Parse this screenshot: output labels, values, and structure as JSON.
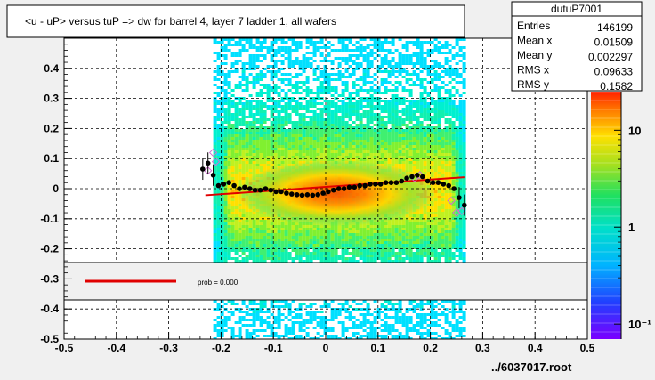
{
  "title": "<u - uP>       versus  tuP =>  dw for barrel 4, layer 7 ladder 1, all wafers",
  "footer_text": "../6037017.root",
  "stats_box": {
    "name": "dutuP7001",
    "rows": [
      {
        "label": "Entries",
        "value": "146199"
      },
      {
        "label": "Mean x",
        "value": "0.01509"
      },
      {
        "label": "Mean y",
        "value": "0.002297"
      },
      {
        "label": "RMS x",
        "value": "0.09633"
      },
      {
        "label": "RMS y",
        "value": "0.1582"
      }
    ]
  },
  "legend": {
    "fit_label": "prob = 0.000",
    "line_color": "#e00000"
  },
  "colors": {
    "background": "#f0f0f0",
    "plot_bg": "#ffffff",
    "profile_points": "#000000",
    "outlier_points": "#d070d0",
    "fit_line": "#e00000"
  },
  "chart_data": {
    "type": "heatmap",
    "title": "<u - uP>       versus  tuP =>  dw for barrel 4, layer 7 ladder 1, all wafers",
    "xlim": [
      -0.5,
      0.5
    ],
    "ylim": [
      -0.5,
      0.5
    ],
    "x_ticks": [
      -0.5,
      -0.4,
      -0.3,
      -0.2,
      -0.1,
      0,
      0.1,
      0.2,
      0.3,
      0.4,
      0.5
    ],
    "x_tick_labels": [
      "-0.5",
      "-0.4",
      "-0.3",
      "-0.2",
      "-0.1",
      "0",
      "0.1",
      "0.2",
      "0.3",
      "0.4",
      "0.5"
    ],
    "y_ticks": [
      -0.5,
      -0.4,
      -0.3,
      -0.2,
      -0.1,
      0,
      0.1,
      0.2,
      0.3,
      0.4
    ],
    "y_tick_labels": [
      "-0.5",
      "-0.4",
      "-0.3",
      "-0.2",
      "-0.1",
      "0",
      "0.1",
      "0.2",
      "0.3",
      "0.4"
    ],
    "grid": true,
    "log_z": true,
    "z_ticks": [
      0.1,
      1,
      10
    ],
    "z_tick_labels": [
      "10⁻¹",
      "1",
      "10"
    ],
    "populated_x_range": [
      -0.215,
      0.265
    ],
    "profile": {
      "x": [
        -0.235,
        -0.225,
        -0.215,
        -0.205,
        -0.195,
        -0.185,
        -0.175,
        -0.165,
        -0.155,
        -0.145,
        -0.135,
        -0.125,
        -0.115,
        -0.105,
        -0.095,
        -0.085,
        -0.075,
        -0.065,
        -0.055,
        -0.045,
        -0.035,
        -0.025,
        -0.015,
        -0.005,
        0.005,
        0.015,
        0.025,
        0.035,
        0.045,
        0.055,
        0.065,
        0.075,
        0.085,
        0.095,
        0.105,
        0.115,
        0.125,
        0.135,
        0.145,
        0.155,
        0.165,
        0.175,
        0.185,
        0.195,
        0.205,
        0.215,
        0.225,
        0.235,
        0.245,
        0.255,
        0.265
      ],
      "y": [
        0.065,
        0.085,
        0.045,
        0.01,
        0.015,
        0.02,
        0.01,
        0.0,
        0.005,
        0.0,
        -0.005,
        -0.005,
        0.0,
        -0.005,
        -0.01,
        -0.01,
        -0.015,
        -0.018,
        -0.02,
        -0.022,
        -0.02,
        -0.022,
        -0.02,
        -0.015,
        -0.01,
        -0.005,
        0.0,
        0.0,
        0.005,
        0.005,
        0.01,
        0.01,
        0.015,
        0.015,
        0.015,
        0.02,
        0.02,
        0.02,
        0.025,
        0.035,
        0.04,
        0.045,
        0.04,
        0.025,
        0.02,
        0.02,
        0.015,
        0.01,
        0.0,
        -0.03,
        -0.055
      ]
    },
    "outliers": {
      "x": [
        -0.225,
        -0.215,
        -0.21,
        0.17,
        0.18,
        0.24,
        0.25,
        0.26
      ],
      "y": [
        0.06,
        0.12,
        0.09,
        0.035,
        0.045,
        -0.04,
        -0.08,
        -0.075
      ]
    },
    "fit_line": {
      "x": [
        -0.23,
        0.265
      ],
      "y": [
        -0.022,
        0.038
      ]
    }
  }
}
